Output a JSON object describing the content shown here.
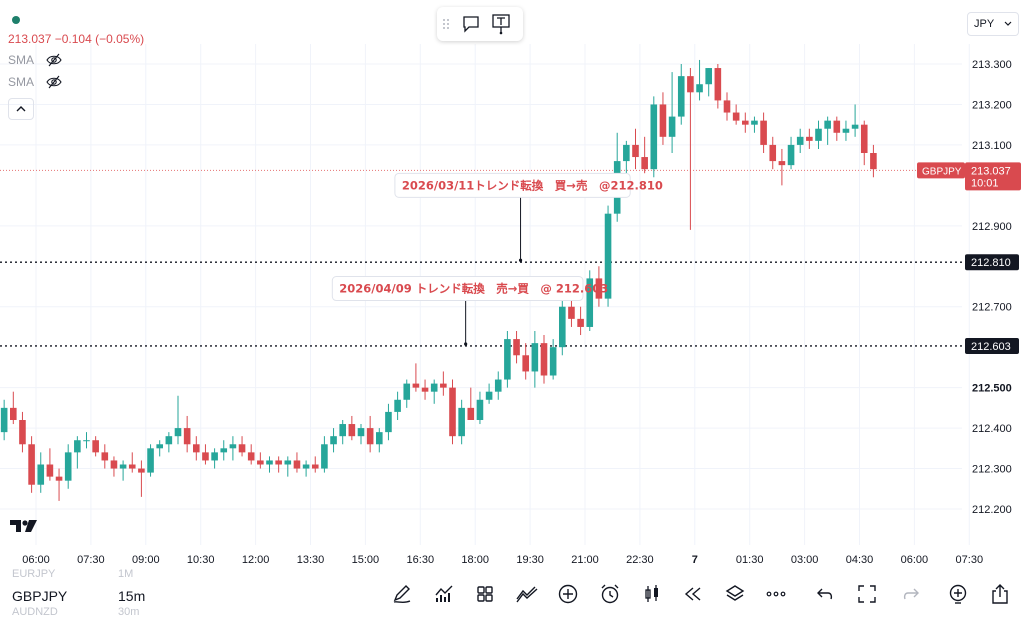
{
  "symbol": "GBPJPY",
  "legend": {
    "price_change": "213.037 −0.104 (−0.05%)",
    "indicators": [
      "SMA",
      "SMA"
    ]
  },
  "currency": "JPY",
  "bottom": {
    "symbols": [
      "EURJPY",
      "GBPJPY",
      "AUDNZD"
    ],
    "intervals": [
      "1M",
      "15m",
      "30m"
    ]
  },
  "icons": [
    "drag-grip-icon",
    "comment-icon",
    "text-note-icon",
    "chevron-up-icon",
    "eye-off-icon",
    "chevron-down-icon",
    "tradingview-logo-icon",
    "pencil-icon",
    "indicators-icon",
    "templates-icon",
    "compare-icon",
    "add-icon",
    "alert-icon",
    "candle-type-icon",
    "replay-icon",
    "layers-icon",
    "more-icon",
    "undo-icon",
    "fullscreen-icon",
    "redo-icon",
    "add-alert-icon",
    "share-icon"
  ],
  "colors": {
    "up": "#26a69a",
    "down": "#d94a4f",
    "price_line": "#e57373",
    "grid": "#f0f3fa"
  },
  "chart_data": {
    "type": "candlestick",
    "timeframe": "15m",
    "x_ticks": [
      "06:00",
      "07:30",
      "09:00",
      "10:30",
      "12:00",
      "13:30",
      "15:00",
      "16:30",
      "18:00",
      "19:30",
      "21:00",
      "22:30",
      "7",
      "01:30",
      "03:00",
      "04:30",
      "06:00",
      "07:30"
    ],
    "y_ticks": [
      "213.300",
      "213.200",
      "213.100",
      "212.900",
      "212.700",
      "212.500",
      "212.400",
      "212.300",
      "212.200"
    ],
    "ylim": [
      212.14,
      213.42
    ],
    "current_price": {
      "label": "GBPJPY",
      "value": "213.037",
      "countdown": "10:01",
      "price": 213.037
    },
    "horizontal_lines": [
      {
        "label": "212.810",
        "price": 212.81
      },
      {
        "label": "212.603",
        "price": 212.603
      }
    ],
    "annotations": [
      {
        "text": "2026/03/11トレンド転換　買→売　@212.810",
        "candle_index": 57,
        "price": 212.81,
        "label_price": 213.0
      },
      {
        "text": "2026/04/09 トレンド転換　売→買　@ 212.603",
        "candle_index": 51,
        "price": 212.603,
        "label_price": 212.745
      }
    ],
    "candles": [
      [
        212.41,
        212.46,
        212.36,
        212.39
      ],
      [
        212.39,
        212.47,
        212.37,
        212.45
      ],
      [
        212.45,
        212.49,
        212.41,
        212.42
      ],
      [
        212.42,
        212.44,
        212.34,
        212.36
      ],
      [
        212.36,
        212.38,
        212.24,
        212.26
      ],
      [
        212.26,
        212.34,
        212.24,
        212.31
      ],
      [
        212.31,
        212.35,
        212.27,
        212.28
      ],
      [
        212.28,
        212.3,
        212.22,
        212.27
      ],
      [
        212.27,
        212.36,
        212.25,
        212.34
      ],
      [
        212.34,
        212.38,
        212.3,
        212.37
      ],
      [
        212.37,
        212.39,
        212.35,
        212.37
      ],
      [
        212.37,
        212.38,
        212.33,
        212.34
      ],
      [
        212.34,
        212.36,
        212.3,
        212.32
      ],
      [
        212.32,
        212.33,
        212.28,
        212.3
      ],
      [
        212.3,
        212.32,
        212.27,
        212.31
      ],
      [
        212.31,
        212.34,
        212.29,
        212.3
      ],
      [
        212.3,
        212.32,
        212.23,
        212.29
      ],
      [
        212.29,
        212.36,
        212.28,
        212.35
      ],
      [
        212.35,
        212.37,
        212.33,
        212.36
      ],
      [
        212.36,
        212.39,
        212.34,
        212.38
      ],
      [
        212.38,
        212.48,
        212.36,
        212.4
      ],
      [
        212.4,
        212.43,
        212.34,
        212.36
      ],
      [
        212.36,
        212.38,
        212.32,
        212.34
      ],
      [
        212.34,
        212.36,
        212.31,
        212.32
      ],
      [
        212.32,
        212.35,
        212.3,
        212.34
      ],
      [
        212.34,
        212.37,
        212.32,
        212.35
      ],
      [
        212.35,
        212.38,
        212.32,
        212.36
      ],
      [
        212.36,
        212.38,
        212.33,
        212.34
      ],
      [
        212.34,
        212.36,
        212.31,
        212.32
      ],
      [
        212.32,
        212.34,
        212.3,
        212.31
      ],
      [
        212.31,
        212.33,
        212.29,
        212.32
      ],
      [
        212.32,
        212.33,
        212.29,
        212.31
      ],
      [
        212.31,
        212.33,
        212.28,
        212.32
      ],
      [
        212.32,
        212.34,
        212.29,
        212.3
      ],
      [
        212.3,
        212.32,
        212.28,
        212.31
      ],
      [
        212.31,
        212.33,
        212.29,
        212.3
      ],
      [
        212.3,
        212.38,
        212.29,
        212.36
      ],
      [
        212.36,
        212.4,
        212.34,
        212.38
      ],
      [
        212.38,
        212.42,
        212.36,
        212.41
      ],
      [
        212.41,
        212.43,
        212.37,
        212.38
      ],
      [
        212.38,
        212.41,
        212.36,
        212.4
      ],
      [
        212.4,
        212.43,
        212.34,
        212.36
      ],
      [
        212.36,
        212.4,
        212.34,
        212.39
      ],
      [
        212.39,
        212.46,
        212.37,
        212.44
      ],
      [
        212.44,
        212.49,
        212.42,
        212.47
      ],
      [
        212.47,
        212.52,
        212.45,
        212.51
      ],
      [
        212.51,
        212.56,
        212.49,
        212.5
      ],
      [
        212.5,
        212.52,
        212.47,
        212.49
      ],
      [
        212.49,
        212.52,
        212.46,
        212.51
      ],
      [
        212.51,
        212.54,
        212.48,
        212.5
      ],
      [
        212.5,
        212.52,
        212.36,
        212.38
      ],
      [
        212.38,
        212.47,
        212.36,
        212.45
      ],
      [
        212.45,
        212.5,
        212.42,
        212.42
      ],
      [
        212.42,
        212.49,
        212.41,
        212.47
      ],
      [
        212.47,
        212.51,
        212.46,
        212.49
      ],
      [
        212.49,
        212.54,
        212.47,
        212.52
      ],
      [
        212.52,
        212.64,
        212.5,
        212.62
      ],
      [
        212.62,
        212.64,
        212.56,
        212.58
      ],
      [
        212.58,
        212.61,
        212.52,
        212.54
      ],
      [
        212.54,
        212.64,
        212.5,
        212.61
      ],
      [
        212.61,
        212.63,
        212.51,
        212.53
      ],
      [
        212.53,
        212.62,
        212.52,
        212.6
      ],
      [
        212.6,
        212.72,
        212.58,
        212.7
      ],
      [
        212.7,
        212.73,
        212.65,
        212.67
      ],
      [
        212.67,
        212.7,
        212.63,
        212.65
      ],
      [
        212.65,
        212.79,
        212.64,
        212.77
      ],
      [
        212.77,
        212.8,
        212.7,
        212.72
      ],
      [
        212.72,
        212.95,
        212.7,
        212.93
      ],
      [
        212.93,
        213.13,
        212.91,
        213.06
      ],
      [
        213.06,
        213.11,
        213.03,
        213.1
      ],
      [
        213.1,
        213.14,
        213.04,
        213.07
      ],
      [
        213.07,
        213.12,
        213.03,
        213.04
      ],
      [
        213.04,
        213.22,
        213.02,
        213.2
      ],
      [
        213.2,
        213.23,
        213.1,
        213.12
      ],
      [
        213.12,
        213.28,
        213.08,
        213.17
      ],
      [
        213.17,
        213.3,
        213.15,
        213.27
      ],
      [
        213.27,
        213.29,
        212.89,
        213.23
      ],
      [
        213.23,
        213.31,
        213.21,
        213.25
      ],
      [
        213.25,
        213.29,
        213.22,
        213.29
      ],
      [
        213.29,
        213.3,
        213.19,
        213.21
      ],
      [
        213.21,
        213.23,
        213.16,
        213.18
      ],
      [
        213.18,
        213.2,
        213.15,
        213.16
      ],
      [
        213.16,
        213.18,
        213.13,
        213.15
      ],
      [
        213.15,
        213.17,
        213.13,
        213.16
      ],
      [
        213.16,
        213.18,
        213.08,
        213.1
      ],
      [
        213.1,
        213.12,
        213.04,
        213.06
      ],
      [
        213.06,
        213.09,
        213.0,
        213.05
      ],
      [
        213.05,
        213.12,
        213.04,
        213.1
      ],
      [
        213.1,
        213.14,
        213.08,
        213.12
      ],
      [
        213.12,
        213.14,
        213.09,
        213.11
      ],
      [
        213.11,
        213.16,
        213.09,
        213.14
      ],
      [
        213.14,
        213.17,
        213.1,
        213.16
      ],
      [
        213.16,
        213.17,
        213.11,
        213.13
      ],
      [
        213.13,
        213.16,
        213.11,
        213.14
      ],
      [
        213.14,
        213.2,
        213.12,
        213.15
      ],
      [
        213.15,
        213.16,
        213.05,
        213.08
      ],
      [
        213.08,
        213.1,
        213.02,
        213.04
      ]
    ]
  }
}
